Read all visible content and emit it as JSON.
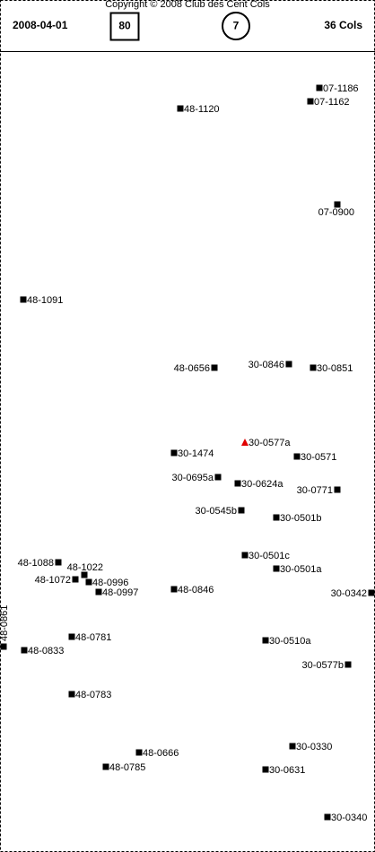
{
  "header": {
    "copyright": "Copyright © 2008 Club des Cent Cols",
    "date": "2008-04-01",
    "box": "80",
    "circle": "7",
    "count": "36 Cols"
  },
  "points": [
    {
      "label": "07-1186"
    },
    {
      "label": "07-1162"
    },
    {
      "label": "48-1120"
    },
    {
      "label": "07-0900"
    },
    {
      "label": "48-1091"
    },
    {
      "label": "48-0656"
    },
    {
      "label": "30-0846"
    },
    {
      "label": "30-0851"
    },
    {
      "label": "30-0577a"
    },
    {
      "label": "30-1474"
    },
    {
      "label": "30-0571"
    },
    {
      "label": "30-0695a"
    },
    {
      "label": "30-0624a"
    },
    {
      "label": "30-0771"
    },
    {
      "label": "30-0545b"
    },
    {
      "label": "30-0501b"
    },
    {
      "label": "30-0501c"
    },
    {
      "label": "48-1088"
    },
    {
      "label": "48-1022"
    },
    {
      "label": "30-0501a"
    },
    {
      "label": "48-1072"
    },
    {
      "label": "48-0996"
    },
    {
      "label": "48-0846"
    },
    {
      "label": "48-0997"
    },
    {
      "label": "30-0342"
    },
    {
      "label": "48-0861"
    },
    {
      "label": "48-0781"
    },
    {
      "label": "30-0510a"
    },
    {
      "label": "48-0833"
    },
    {
      "label": "30-0577b"
    },
    {
      "label": "48-0783"
    },
    {
      "label": "30-0330"
    },
    {
      "label": "48-0666"
    },
    {
      "label": "48-0785"
    },
    {
      "label": "30-0631"
    },
    {
      "label": "30-0340"
    }
  ]
}
